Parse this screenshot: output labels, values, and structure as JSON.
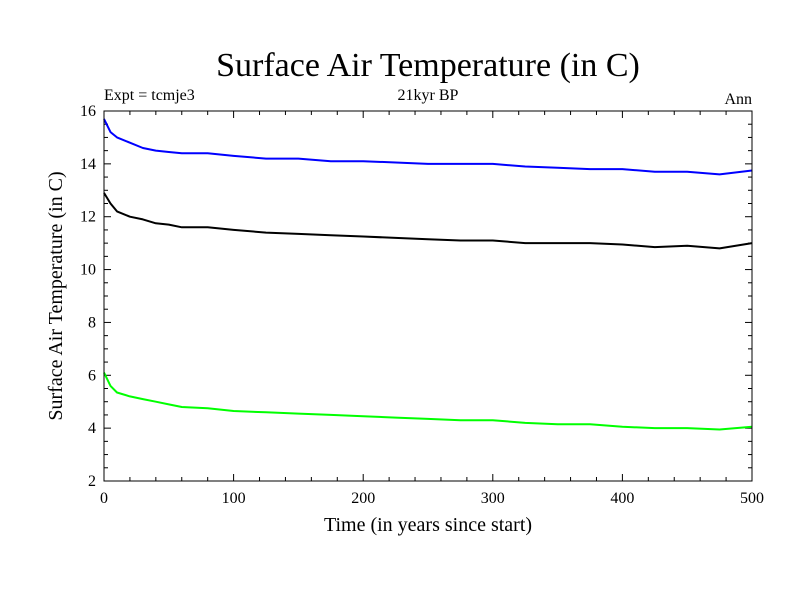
{
  "chart_data": {
    "type": "line",
    "title": "Surface Air Temperature (in C)",
    "header_left": "Expt = tcmje3",
    "header_center": "21kyr BP",
    "header_right": "Ann",
    "xlabel": "Time (in years since start)",
    "ylabel": "Surface Air Temperature (in C)",
    "xlim": [
      0,
      500
    ],
    "ylim": [
      2,
      16
    ],
    "xticks": [
      0,
      100,
      200,
      300,
      400,
      500
    ],
    "yticks": [
      2,
      4,
      6,
      8,
      10,
      12,
      14,
      16
    ],
    "grid": false,
    "x": [
      0,
      5,
      10,
      20,
      30,
      40,
      50,
      60,
      80,
      100,
      125,
      150,
      175,
      200,
      225,
      250,
      275,
      300,
      325,
      350,
      375,
      400,
      425,
      450,
      475,
      500
    ],
    "series": [
      {
        "color": "#0000ff",
        "values": [
          15.7,
          15.2,
          15.0,
          14.8,
          14.6,
          14.5,
          14.45,
          14.4,
          14.4,
          14.3,
          14.2,
          14.2,
          14.1,
          14.1,
          14.05,
          14.0,
          14.0,
          14.0,
          13.9,
          13.85,
          13.8,
          13.8,
          13.7,
          13.7,
          13.6,
          13.75
        ]
      },
      {
        "color": "#000000",
        "values": [
          12.9,
          12.5,
          12.2,
          12.0,
          11.9,
          11.75,
          11.7,
          11.6,
          11.6,
          11.5,
          11.4,
          11.35,
          11.3,
          11.25,
          11.2,
          11.15,
          11.1,
          11.1,
          11.0,
          11.0,
          11.0,
          10.95,
          10.85,
          10.9,
          10.8,
          11.0
        ]
      },
      {
        "color": "#00ff00",
        "values": [
          6.1,
          5.6,
          5.35,
          5.2,
          5.1,
          5.0,
          4.9,
          4.8,
          4.75,
          4.65,
          4.6,
          4.55,
          4.5,
          4.45,
          4.4,
          4.35,
          4.3,
          4.3,
          4.2,
          4.15,
          4.15,
          4.05,
          4.0,
          4.0,
          3.95,
          4.05
        ]
      }
    ]
  }
}
